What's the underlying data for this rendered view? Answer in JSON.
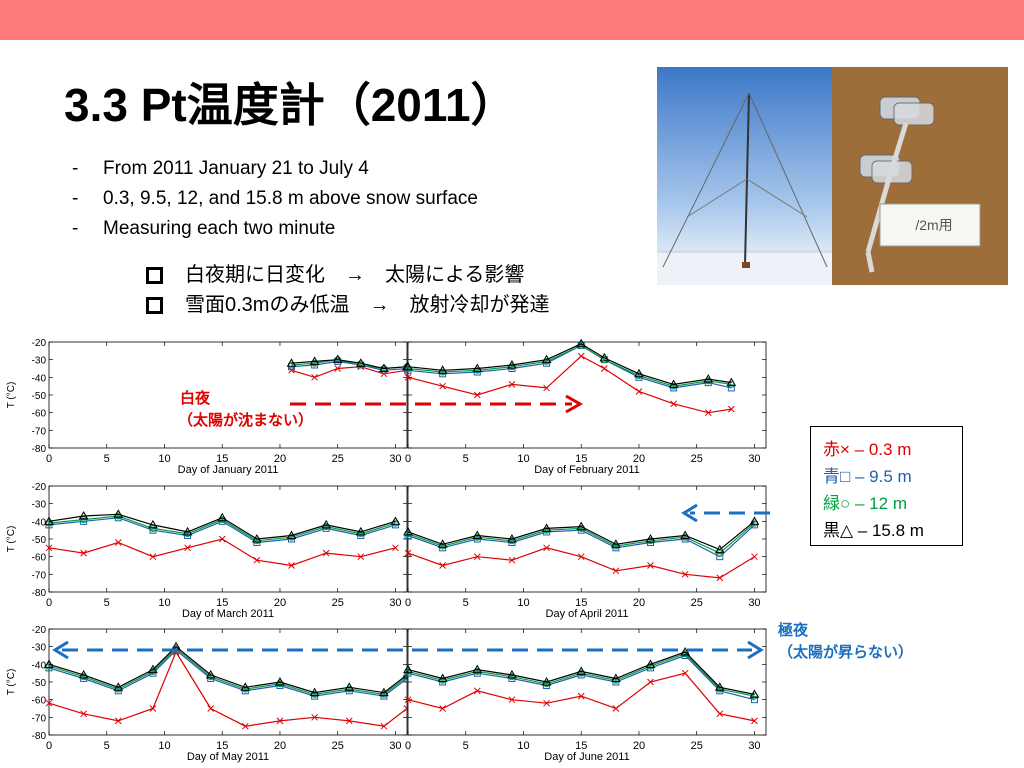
{
  "slide": {
    "title": "3.3 Pt温度計（2011）",
    "bullets": [
      {
        "marker": "-",
        "text": "From 2011 January 21 to July 4"
      },
      {
        "marker": "-",
        "text": "0.3, 9.5, 12, and 15.8 m above  snow surface"
      },
      {
        "marker": "-",
        "text": "Measuring each two minute"
      }
    ],
    "notes": [
      {
        "text": "白夜期に日変化　→　太陽による影響"
      },
      {
        "text": "雪面0.3mのみ低温　→　放射冷却が発達"
      }
    ],
    "photos": [
      {
        "icon": "mast-photo-icon"
      },
      {
        "icon": "sensor-photo-icon",
        "label": "/2m用"
      }
    ],
    "legend": [
      {
        "text": "赤×",
        "sub": " – 0.3 m",
        "color": "#e00000"
      },
      {
        "text": "青□",
        "sub": " – 9.5 m",
        "color": "#1f5fb0"
      },
      {
        "text": "緑○",
        "sub": " – 12 m",
        "color": "#00a040"
      },
      {
        "text": "黒△",
        "sub": " – 15.8 m",
        "color": "#000000"
      }
    ],
    "annotations": {
      "white_night_1": "白夜",
      "white_night_2": "（太陽が沈まない）",
      "polar_night_1": "極夜",
      "polar_night_2": "（太陽が昇らない）"
    },
    "colors": {
      "top_bar": "#ff7a7a",
      "red": "#e00000",
      "blue": "#1f5fb0",
      "green": "#00a040",
      "arrow_blue": "#1a6fc0"
    }
  },
  "chart_data": {
    "type": "line",
    "ylabel": "T (°C)",
    "ylim": [
      -80,
      -20
    ],
    "yticks": [
      -20,
      -30,
      -40,
      -50,
      -60,
      -70,
      -80
    ],
    "xlim": [
      0,
      31
    ],
    "xticks": [
      0,
      5,
      10,
      15,
      20,
      25,
      30
    ],
    "panels": [
      {
        "xlabel": "Day of January 2011",
        "series": [
          {
            "name": "0.3 m",
            "x": [
              21,
              23,
              25,
              27,
              29,
              31
            ],
            "y": [
              -36,
              -40,
              -35,
              -34,
              -38,
              -36
            ]
          },
          {
            "name": "9.5 m",
            "x": [
              21,
              23,
              25,
              27,
              29,
              31
            ],
            "y": [
              -34,
              -33,
              -31,
              -33,
              -36,
              -35
            ]
          },
          {
            "name": "12 m",
            "x": [
              21,
              23,
              25,
              27,
              29,
              31
            ],
            "y": [
              -33,
              -32,
              -30,
              -33,
              -35,
              -34
            ]
          },
          {
            "name": "15.8 m",
            "x": [
              21,
              23,
              25,
              27,
              29,
              31
            ],
            "y": [
              -32,
              -31,
              -30,
              -32,
              -35,
              -34
            ]
          }
        ]
      },
      {
        "xlabel": "Day of February 2011",
        "series": [
          {
            "name": "0.3 m",
            "x": [
              0,
              3,
              6,
              9,
              12,
              15,
              17,
              20,
              23,
              26,
              28
            ],
            "y": [
              -40,
              -45,
              -50,
              -44,
              -46,
              -28,
              -35,
              -48,
              -55,
              -60,
              -58
            ]
          },
          {
            "name": "9.5 m",
            "x": [
              0,
              3,
              6,
              9,
              12,
              15,
              17,
              20,
              23,
              26,
              28
            ],
            "y": [
              -36,
              -38,
              -37,
              -35,
              -32,
              -22,
              -30,
              -40,
              -46,
              -43,
              -46
            ]
          },
          {
            "name": "12 m",
            "x": [
              0,
              3,
              6,
              9,
              12,
              15,
              17,
              20,
              23,
              26,
              28
            ],
            "y": [
              -35,
              -37,
              -36,
              -34,
              -31,
              -22,
              -30,
              -39,
              -45,
              -42,
              -44
            ]
          },
          {
            "name": "15.8 m",
            "x": [
              0,
              3,
              6,
              9,
              12,
              15,
              17,
              20,
              23,
              26,
              28
            ],
            "y": [
              -34,
              -36,
              -35,
              -33,
              -30,
              -21,
              -29,
              -38,
              -44,
              -41,
              -43
            ]
          }
        ]
      },
      {
        "xlabel": "Day of March 2011",
        "series": [
          {
            "name": "0.3 m",
            "x": [
              0,
              3,
              6,
              9,
              12,
              15,
              18,
              21,
              24,
              27,
              30
            ],
            "y": [
              -55,
              -58,
              -52,
              -60,
              -55,
              -50,
              -62,
              -65,
              -58,
              -60,
              -55
            ]
          },
          {
            "name": "9.5 m",
            "x": [
              0,
              3,
              6,
              9,
              12,
              15,
              18,
              21,
              24,
              27,
              30
            ],
            "y": [
              -42,
              -40,
              -38,
              -45,
              -48,
              -40,
              -52,
              -50,
              -44,
              -48,
              -42
            ]
          },
          {
            "name": "12 m",
            "x": [
              0,
              3,
              6,
              9,
              12,
              15,
              18,
              21,
              24,
              27,
              30
            ],
            "y": [
              -41,
              -39,
              -37,
              -44,
              -47,
              -39,
              -51,
              -49,
              -43,
              -47,
              -41
            ]
          },
          {
            "name": "15.8 m",
            "x": [
              0,
              3,
              6,
              9,
              12,
              15,
              18,
              21,
              24,
              27,
              30
            ],
            "y": [
              -40,
              -37,
              -36,
              -42,
              -46,
              -38,
              -50,
              -48,
              -42,
              -46,
              -40
            ]
          }
        ]
      },
      {
        "xlabel": "Day of April 2011",
        "series": [
          {
            "name": "0.3 m",
            "x": [
              0,
              3,
              6,
              9,
              12,
              15,
              18,
              21,
              24,
              27,
              30
            ],
            "y": [
              -58,
              -65,
              -60,
              -62,
              -55,
              -60,
              -68,
              -65,
              -70,
              -72,
              -60
            ]
          },
          {
            "name": "9.5 m",
            "x": [
              0,
              3,
              6,
              9,
              12,
              15,
              18,
              21,
              24,
              27,
              30
            ],
            "y": [
              -48,
              -55,
              -50,
              -52,
              -46,
              -45,
              -55,
              -52,
              -50,
              -60,
              -42
            ]
          },
          {
            "name": "12 m",
            "x": [
              0,
              3,
              6,
              9,
              12,
              15,
              18,
              21,
              24,
              27,
              30
            ],
            "y": [
              -47,
              -54,
              -49,
              -51,
              -45,
              -44,
              -54,
              -51,
              -49,
              -58,
              -41
            ]
          },
          {
            "name": "15.8 m",
            "x": [
              0,
              3,
              6,
              9,
              12,
              15,
              18,
              21,
              24,
              27,
              30
            ],
            "y": [
              -46,
              -53,
              -48,
              -50,
              -44,
              -43,
              -53,
              -50,
              -48,
              -56,
              -40
            ]
          }
        ]
      },
      {
        "xlabel": "Day of May 2011",
        "series": [
          {
            "name": "0.3 m",
            "x": [
              0,
              3,
              6,
              9,
              11,
              14,
              17,
              20,
              23,
              26,
              29,
              31
            ],
            "y": [
              -62,
              -68,
              -72,
              -65,
              -33,
              -65,
              -75,
              -72,
              -70,
              -72,
              -75,
              -65
            ]
          },
          {
            "name": "9.5 m",
            "x": [
              0,
              3,
              6,
              9,
              11,
              14,
              17,
              20,
              23,
              26,
              29,
              31
            ],
            "y": [
              -42,
              -48,
              -55,
              -45,
              -32,
              -48,
              -55,
              -52,
              -58,
              -55,
              -58,
              -48
            ]
          },
          {
            "name": "12 m",
            "x": [
              0,
              3,
              6,
              9,
              11,
              14,
              17,
              20,
              23,
              26,
              29,
              31
            ],
            "y": [
              -41,
              -47,
              -54,
              -44,
              -31,
              -47,
              -54,
              -51,
              -57,
              -54,
              -57,
              -47
            ]
          },
          {
            "name": "15.8 m",
            "x": [
              0,
              3,
              6,
              9,
              11,
              14,
              17,
              20,
              23,
              26,
              29,
              31
            ],
            "y": [
              -40,
              -46,
              -53,
              -43,
              -30,
              -46,
              -53,
              -50,
              -56,
              -53,
              -56,
              -46
            ]
          }
        ]
      },
      {
        "xlabel": "Day of June 2011",
        "series": [
          {
            "name": "0.3 m",
            "x": [
              0,
              3,
              6,
              9,
              12,
              15,
              18,
              21,
              24,
              27,
              30
            ],
            "y": [
              -60,
              -65,
              -55,
              -60,
              -62,
              -58,
              -65,
              -50,
              -45,
              -68,
              -72
            ]
          },
          {
            "name": "9.5 m",
            "x": [
              0,
              3,
              6,
              9,
              12,
              15,
              18,
              21,
              24,
              27,
              30
            ],
            "y": [
              -45,
              -50,
              -45,
              -48,
              -52,
              -46,
              -50,
              -42,
              -35,
              -55,
              -60
            ]
          },
          {
            "name": "12 m",
            "x": [
              0,
              3,
              6,
              9,
              12,
              15,
              18,
              21,
              24,
              27,
              30
            ],
            "y": [
              -44,
              -49,
              -44,
              -47,
              -51,
              -45,
              -49,
              -41,
              -34,
              -54,
              -58
            ]
          },
          {
            "name": "15.8 m",
            "x": [
              0,
              3,
              6,
              9,
              12,
              15,
              18,
              21,
              24,
              27,
              30
            ],
            "y": [
              -43,
              -48,
              -43,
              -46,
              -50,
              -44,
              -48,
              -40,
              -33,
              -53,
              -57
            ]
          }
        ]
      }
    ]
  }
}
